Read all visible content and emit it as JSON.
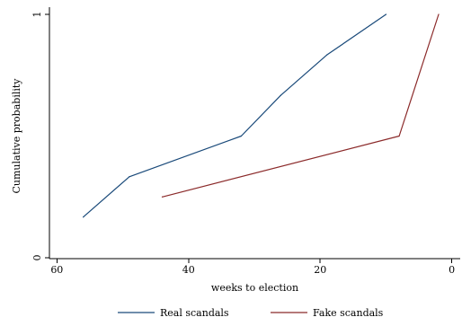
{
  "chart_data": {
    "type": "line",
    "title": "",
    "xlabel": "weeks to election",
    "ylabel": "Cumulative probability",
    "xlim": [
      61,
      -1
    ],
    "ylim": [
      0,
      1
    ],
    "x_reversed": true,
    "xticks": [
      60,
      40,
      20,
      0
    ],
    "yticks": [
      0,
      1
    ],
    "grid": false,
    "legend_position": "bottom",
    "series": [
      {
        "name": "Real scandals",
        "color": "#1a4a7a",
        "points": [
          {
            "x": 56,
            "y": 0.167
          },
          {
            "x": 49,
            "y": 0.333
          },
          {
            "x": 32,
            "y": 0.5
          },
          {
            "x": 26,
            "y": 0.667
          },
          {
            "x": 19,
            "y": 0.833
          },
          {
            "x": 10,
            "y": 1.0
          }
        ]
      },
      {
        "name": "Fake scandals",
        "color": "#8b2a2a",
        "points": [
          {
            "x": 44,
            "y": 0.25
          },
          {
            "x": 8,
            "y": 0.5
          },
          {
            "x": 2,
            "y": 1.0
          }
        ]
      }
    ]
  }
}
